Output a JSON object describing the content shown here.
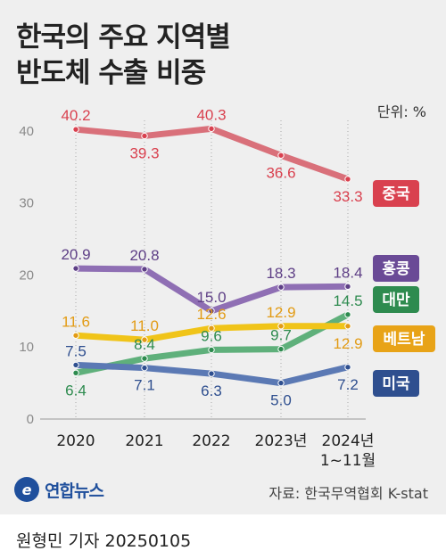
{
  "title_line1": "한국의 주요 지역별",
  "title_line2": "반도체 수출 비중",
  "unit": "단위: %",
  "logo_text": "연합뉴스",
  "source": "자료: 한국무역협회 K-stat",
  "byline": "원형민 기자 20250105",
  "chart_data": {
    "type": "line",
    "x": [
      "2020",
      "2021",
      "2022",
      "2023년",
      "2024년\n1~11월"
    ],
    "ylim": [
      0,
      45
    ],
    "yticks": [
      0,
      10,
      20,
      30,
      40
    ],
    "grid": "vertical dotted",
    "series": [
      {
        "name": "중국",
        "color": "#d9707a",
        "labelColor": "#d9414f",
        "values": [
          40.2,
          39.3,
          40.3,
          36.6,
          33.3
        ],
        "labelPos": [
          "above",
          "below",
          "above",
          "below",
          "below"
        ]
      },
      {
        "name": "홍콩",
        "color": "#8f6fb4",
        "labelColor": "#5e3f86",
        "values": [
          20.9,
          20.8,
          15.0,
          18.3,
          18.4
        ],
        "labelPos": [
          "above",
          "above",
          "above",
          "above",
          "above"
        ]
      },
      {
        "name": "대만",
        "color": "#5fb07b",
        "labelColor": "#2e8b4f",
        "values": [
          6.4,
          8.4,
          9.6,
          9.7,
          14.5
        ],
        "labelPos": [
          "below",
          "above",
          "above",
          "above",
          "above"
        ]
      },
      {
        "name": "베트남",
        "color": "#f0c419",
        "labelColor": "#e29b14",
        "values": [
          11.6,
          11.0,
          12.6,
          12.9,
          12.9
        ],
        "labelPos": [
          "above",
          "above",
          "above",
          "above",
          "below"
        ]
      },
      {
        "name": "미국",
        "color": "#5b79b4",
        "labelColor": "#2f4f8f",
        "values": [
          7.5,
          7.1,
          6.3,
          5.0,
          7.2
        ],
        "labelPos": [
          "above",
          "below",
          "below",
          "below",
          "below"
        ]
      }
    ],
    "legend": [
      {
        "name": "중국",
        "bg": "#d9414f"
      },
      {
        "name": "홍콩",
        "bg": "#6a4a96"
      },
      {
        "name": "대만",
        "bg": "#2e8b4f"
      },
      {
        "name": "베트남",
        "bg": "#e8a317"
      },
      {
        "name": "미국",
        "bg": "#2f4f8f"
      }
    ]
  }
}
